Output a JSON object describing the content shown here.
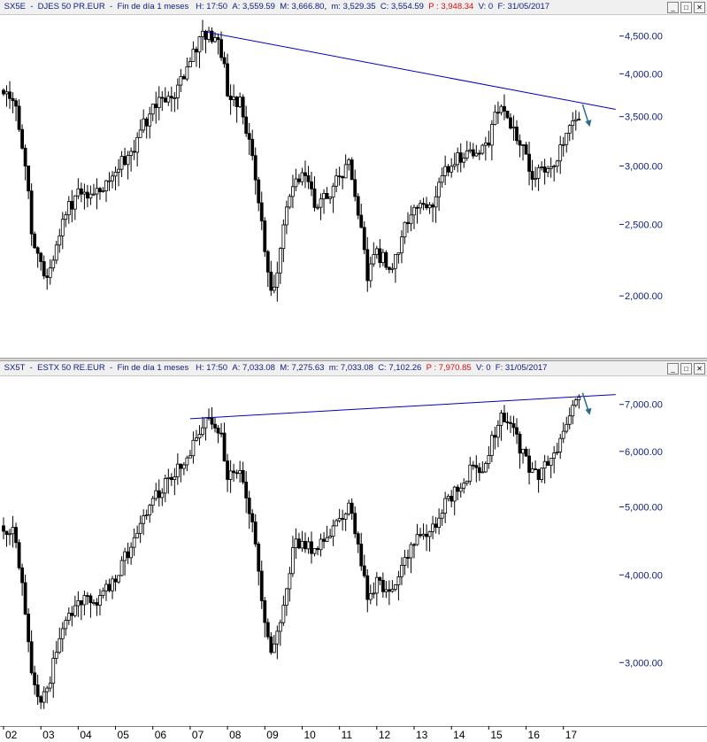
{
  "panels": [
    {
      "symbol": "SX5E",
      "name": "DJES 50 PR.EUR",
      "period": "Fin de día 1 meses",
      "h_label": "H:",
      "h_val": "17:50",
      "a_label": "A:",
      "a_val": "3,559.59",
      "m_label": "M:",
      "m_val": "3,666.80",
      "mn_label": "m:",
      "mn_val": "3,529.35",
      "c_label": "C:",
      "c_val": "3,554.59",
      "p_label": "P :",
      "p_val": "3,948.34",
      "v_label": "V:",
      "v_val": "0",
      "f_label": "F:",
      "f_val": "31/05/2017"
    },
    {
      "symbol": "SX5T",
      "name": "ESTX 50 RE.EUR",
      "period": "Fin de día 1 meses",
      "h_label": "H:",
      "h_val": "17:50",
      "a_label": "A:",
      "a_val": "7,033.08",
      "m_label": "M:",
      "m_val": "7,275.63",
      "mn_label": "m:",
      "mn_val": "7,033.08",
      "c_label": "C:",
      "c_val": "7,102.26",
      "p_label": "P :",
      "p_val": "7,970.85",
      "v_label": "V:",
      "v_val": "0",
      "f_label": "F:",
      "f_val": "31/05/2017"
    }
  ],
  "window_buttons": {
    "min": "_",
    "max": "□",
    "close": "✕"
  },
  "colors": {
    "candle": "#000000",
    "trendline": "#0000c0",
    "arrow": "#2a6a8a",
    "axis_text": "#102080",
    "header_red": "#d01010"
  },
  "chart_data": [
    {
      "type": "candlestick",
      "title": "SX5E - DJES 50 PR.EUR",
      "scale": "log",
      "ylim": [
        1700,
        4700
      ],
      "y_ticks": [
        2000,
        2500,
        3000,
        3500,
        4000,
        4500
      ],
      "y_tick_labels": [
        "2,000.00",
        "2,500.00",
        "3,000.00",
        "3,500.00",
        "4,000.00",
        "4,500.00"
      ],
      "xlim": [
        2002.0,
        2018.5
      ],
      "close_anchors": [
        [
          2002.0,
          3800
        ],
        [
          2002.3,
          3600
        ],
        [
          2002.6,
          3000
        ],
        [
          2002.75,
          2400
        ],
        [
          2003.0,
          2200
        ],
        [
          2003.2,
          2100
        ],
        [
          2003.5,
          2450
        ],
        [
          2004.0,
          2800
        ],
        [
          2004.5,
          2750
        ],
        [
          2005.0,
          2950
        ],
        [
          2005.5,
          3200
        ],
        [
          2006.0,
          3600
        ],
        [
          2006.5,
          3700
        ],
        [
          2007.0,
          4150
        ],
        [
          2007.4,
          4550
        ],
        [
          2007.8,
          4400
        ],
        [
          2008.0,
          3800
        ],
        [
          2008.4,
          3600
        ],
        [
          2008.7,
          3000
        ],
        [
          2009.0,
          2300
        ],
        [
          2009.2,
          2000
        ],
        [
          2009.5,
          2450
        ],
        [
          2009.8,
          2900
        ],
        [
          2010.0,
          2950
        ],
        [
          2010.4,
          2650
        ],
        [
          2010.8,
          2800
        ],
        [
          2011.0,
          2950
        ],
        [
          2011.3,
          3000
        ],
        [
          2011.6,
          2400
        ],
        [
          2011.75,
          2150
        ],
        [
          2012.0,
          2300
        ],
        [
          2012.3,
          2200
        ],
        [
          2012.5,
          2250
        ],
        [
          2012.8,
          2500
        ],
        [
          2013.0,
          2650
        ],
        [
          2013.5,
          2700
        ],
        [
          2014.0,
          3050
        ],
        [
          2014.5,
          3150
        ],
        [
          2014.8,
          3100
        ],
        [
          2015.0,
          3250
        ],
        [
          2015.3,
          3650
        ],
        [
          2015.6,
          3450
        ],
        [
          2015.8,
          3250
        ],
        [
          2016.0,
          3100
        ],
        [
          2016.2,
          2900
        ],
        [
          2016.5,
          2950
        ],
        [
          2016.8,
          3050
        ],
        [
          2017.0,
          3250
        ],
        [
          2017.3,
          3550
        ],
        [
          2017.42,
          3554.59
        ]
      ],
      "trendline": [
        [
          2007.4,
          4560
        ],
        [
          2018.4,
          3580
        ]
      ],
      "x_ticks": [
        "02",
        "03",
        "04",
        "05",
        "06",
        "07",
        "08",
        "09",
        "10",
        "11",
        "12",
        "13",
        "14",
        "15",
        "16",
        "17"
      ]
    },
    {
      "type": "candlestick",
      "title": "SX5T - ESTX 50 RE.EUR",
      "scale": "log",
      "ylim": [
        2500,
        7500
      ],
      "y_ticks": [
        3000,
        4000,
        5000,
        6000,
        7000
      ],
      "y_tick_labels": [
        "3,000.00",
        "4,000.00",
        "5,000.00",
        "6,000.00",
        "7,000.00"
      ],
      "xlim": [
        2002.0,
        2018.5
      ],
      "close_anchors": [
        [
          2002.0,
          4700
        ],
        [
          2002.3,
          4600
        ],
        [
          2002.6,
          3500
        ],
        [
          2002.75,
          2850
        ],
        [
          2003.0,
          2700
        ],
        [
          2003.2,
          2750
        ],
        [
          2003.5,
          3250
        ],
        [
          2004.0,
          3700
        ],
        [
          2004.5,
          3650
        ],
        [
          2005.0,
          4000
        ],
        [
          2005.5,
          4500
        ],
        [
          2006.0,
          5200
        ],
        [
          2006.5,
          5450
        ],
        [
          2007.0,
          6000
        ],
        [
          2007.4,
          6600
        ],
        [
          2007.8,
          6450
        ],
        [
          2008.0,
          5600
        ],
        [
          2008.4,
          5500
        ],
        [
          2008.7,
          4600
        ],
        [
          2009.0,
          3400
        ],
        [
          2009.2,
          3000
        ],
        [
          2009.5,
          3700
        ],
        [
          2009.8,
          4400
        ],
        [
          2010.0,
          4500
        ],
        [
          2010.4,
          4300
        ],
        [
          2010.8,
          4650
        ],
        [
          2011.0,
          4900
        ],
        [
          2011.3,
          4950
        ],
        [
          2011.6,
          4100
        ],
        [
          2011.75,
          3650
        ],
        [
          2012.0,
          3900
        ],
        [
          2012.3,
          3750
        ],
        [
          2012.5,
          3900
        ],
        [
          2012.8,
          4200
        ],
        [
          2013.0,
          4500
        ],
        [
          2013.5,
          4650
        ],
        [
          2014.0,
          5200
        ],
        [
          2014.5,
          5600
        ],
        [
          2014.8,
          5650
        ],
        [
          2015.0,
          5950
        ],
        [
          2015.3,
          6800
        ],
        [
          2015.6,
          6450
        ],
        [
          2015.8,
          6150
        ],
        [
          2016.0,
          5800
        ],
        [
          2016.2,
          5500
        ],
        [
          2016.5,
          5700
        ],
        [
          2016.8,
          5900
        ],
        [
          2017.0,
          6400
        ],
        [
          2017.3,
          7000
        ],
        [
          2017.42,
          7102.26
        ]
      ],
      "trendline": [
        [
          2007.0,
          6680
        ],
        [
          2018.4,
          7230
        ]
      ],
      "x_ticks": [
        "02",
        "03",
        "04",
        "05",
        "06",
        "07",
        "08",
        "09",
        "10",
        "11",
        "12",
        "13",
        "14",
        "15",
        "16",
        "17"
      ]
    }
  ]
}
